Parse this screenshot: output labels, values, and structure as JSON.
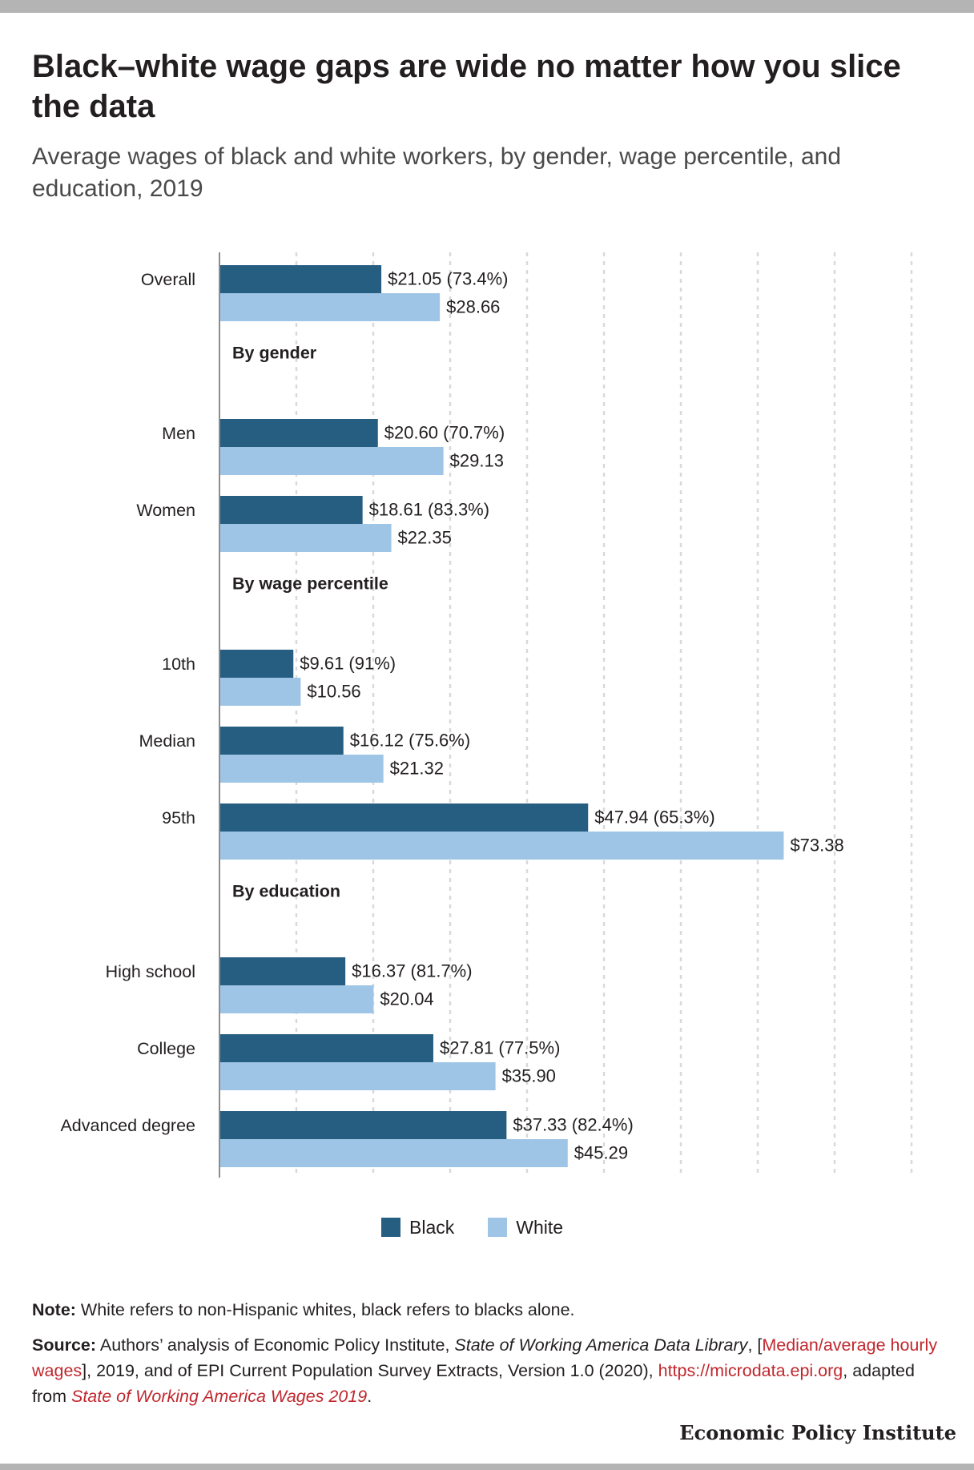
{
  "title": "Black–white wage gaps are wide no matter how you slice the data",
  "subtitle": "Average wages of black and white workers, by gender, wage percentile, and education, 2019",
  "colors": {
    "black": "#265e82",
    "white": "#9fc5e6",
    "grid": "#d9d9d9",
    "axis": "#8c8c8c"
  },
  "chart_data": {
    "type": "bar",
    "orientation": "horizontal",
    "xlim": [
      0,
      90
    ],
    "grid": true,
    "legend_position": "bottom-center",
    "series": [
      {
        "name": "Black",
        "key": "black"
      },
      {
        "name": "White",
        "key": "white"
      }
    ],
    "rows": [
      {
        "kind": "group",
        "label": "Overall",
        "black": 21.05,
        "white": 28.66,
        "black_label": "$21.05 (73.4%)",
        "white_label": "$28.66"
      },
      {
        "kind": "heading",
        "label": "By gender"
      },
      {
        "kind": "group",
        "label": "Men",
        "black": 20.6,
        "white": 29.13,
        "black_label": "$20.60 (70.7%)",
        "white_label": "$29.13"
      },
      {
        "kind": "group",
        "label": "Women",
        "black": 18.61,
        "white": 22.35,
        "black_label": "$18.61 (83.3%)",
        "white_label": "$22.35"
      },
      {
        "kind": "heading",
        "label": "By wage percentile"
      },
      {
        "kind": "group",
        "label": "10th",
        "black": 9.61,
        "white": 10.56,
        "black_label": "$9.61 (91%)",
        "white_label": "$10.56"
      },
      {
        "kind": "group",
        "label": "Median",
        "black": 16.12,
        "white": 21.32,
        "black_label": "$16.12 (75.6%)",
        "white_label": "$21.32"
      },
      {
        "kind": "group",
        "label": "95th",
        "black": 47.94,
        "white": 73.38,
        "black_label": "$47.94 (65.3%)",
        "white_label": "$73.38"
      },
      {
        "kind": "heading",
        "label": "By education"
      },
      {
        "kind": "group",
        "label": "High school",
        "black": 16.37,
        "white": 20.04,
        "black_label": "$16.37 (81.7%)",
        "white_label": "$20.04"
      },
      {
        "kind": "group",
        "label": "College",
        "black": 27.81,
        "white": 35.9,
        "black_label": "$27.81 (77.5%)",
        "white_label": "$35.90"
      },
      {
        "kind": "group",
        "label": "Advanced degree",
        "black": 37.33,
        "white": 45.29,
        "black_label": "$37.33 (82.4%)",
        "white_label": "$45.29"
      }
    ]
  },
  "legend": {
    "black_label": "Black",
    "white_label": "White"
  },
  "note": {
    "lead": "Note:",
    "text": " White refers to non-Hispanic whites, black refers to blacks alone."
  },
  "source": {
    "lead": "Source:",
    "text1": " Authors’ analysis of Economic Policy Institute, ",
    "italic1": "State of Working America Data Library",
    "text2": ", [",
    "link1": "Median/average hourly wages",
    "text3": "], 2019, and of EPI Current Population Survey Extracts, Version 1.0 (2020), ",
    "link2": "https://microdata.epi.org",
    "text4": ", adapted from ",
    "link3": "State of Working America Wages 2019",
    "text5": "."
  },
  "brand": "Economic Policy Institute"
}
